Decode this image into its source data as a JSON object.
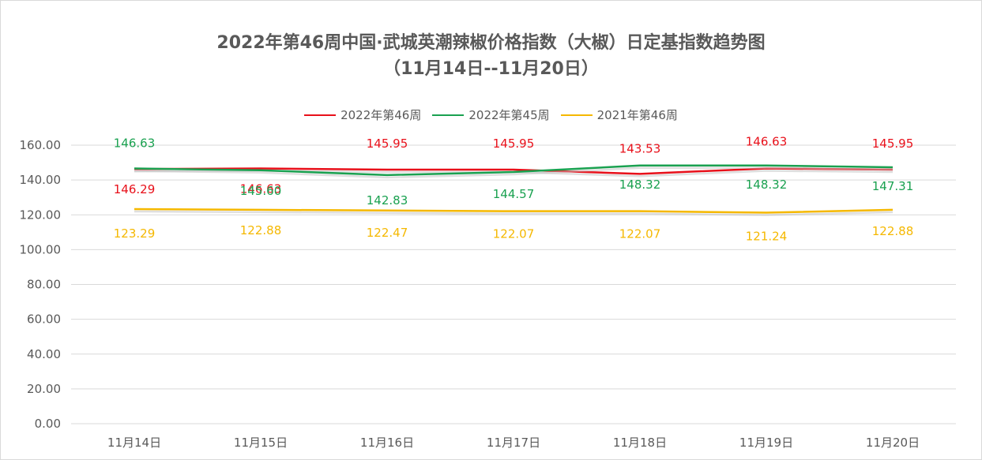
{
  "chart_data": {
    "type": "line",
    "title_line1": "2022年第46周中国·武城英潮辣椒价格指数（大椒）日定基指数趋势图",
    "title_line2": "（11月14日--11月20日）",
    "categories": [
      "11月14日",
      "11月15日",
      "11月16日",
      "11月17日",
      "11月18日",
      "11月19日",
      "11月20日"
    ],
    "ylim": [
      0,
      160
    ],
    "yticks": [
      "0.00",
      "20.00",
      "40.00",
      "60.00",
      "80.00",
      "100.00",
      "120.00",
      "140.00",
      "160.00"
    ],
    "grid": true,
    "legend_position": "top",
    "series": [
      {
        "name": "2022年第46周",
        "color": "#e8101a",
        "values": [
          146.29,
          146.63,
          145.95,
          145.95,
          143.53,
          146.63,
          145.95
        ],
        "labels": [
          "146.29",
          "146.63",
          "145.95",
          "145.95",
          "143.53",
          "146.63",
          "145.95"
        ]
      },
      {
        "name": "2022年第45周",
        "color": "#1aa150",
        "values": [
          146.63,
          145.6,
          142.83,
          144.57,
          148.32,
          148.32,
          147.31
        ],
        "labels": [
          "146.63",
          "145.60",
          "142.83",
          "144.57",
          "148.32",
          "148.32",
          "147.31"
        ]
      },
      {
        "name": "2021年第46周",
        "color": "#f5b800",
        "values": [
          123.29,
          122.88,
          122.47,
          122.07,
          122.07,
          121.24,
          122.88
        ],
        "labels": [
          "123.29",
          "122.88",
          "122.47",
          "122.07",
          "122.07",
          "121.24",
          "122.88"
        ]
      }
    ]
  }
}
